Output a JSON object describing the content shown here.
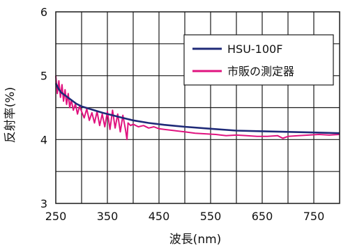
{
  "chart_data": {
    "type": "line",
    "xlabel": "波長(nm)",
    "ylabel": "反射率(%)",
    "xlim": [
      250,
      800
    ],
    "ylim": [
      3,
      6
    ],
    "x_ticks": [
      250,
      350,
      450,
      550,
      650,
      750
    ],
    "x_tick_labels": [
      "250",
      "350",
      "450",
      "550",
      "650",
      "750"
    ],
    "y_ticks": [
      3,
      4,
      5,
      6
    ],
    "y_tick_labels": [
      "3",
      "4",
      "5",
      "6"
    ],
    "grid": true,
    "legend_position": "top-right",
    "series": [
      {
        "name": "HSU-100F",
        "color": "#1f2a78",
        "x": [
          250,
          255,
          260,
          270,
          280,
          290,
          300,
          320,
          340,
          360,
          380,
          400,
          430,
          460,
          500,
          550,
          600,
          650,
          700,
          750,
          800
        ],
        "y": [
          4.88,
          4.8,
          4.74,
          4.68,
          4.62,
          4.56,
          4.52,
          4.47,
          4.42,
          4.38,
          4.34,
          4.3,
          4.26,
          4.23,
          4.2,
          4.17,
          4.14,
          4.13,
          4.12,
          4.11,
          4.1
        ]
      },
      {
        "name": "市販の測定器",
        "color": "#e0137f",
        "x": [
          250,
          253,
          256,
          259,
          262,
          265,
          268,
          271,
          274,
          277,
          280,
          284,
          288,
          292,
          296,
          300,
          305,
          310,
          315,
          320,
          325,
          330,
          335,
          340,
          345,
          350,
          355,
          360,
          365,
          370,
          375,
          380,
          385,
          388,
          390,
          395,
          400,
          410,
          420,
          430,
          440,
          450,
          460,
          480,
          500,
          520,
          540,
          560,
          580,
          600,
          620,
          640,
          660,
          680,
          690,
          700,
          720,
          740,
          760,
          780,
          800
        ],
        "y": [
          5.0,
          4.72,
          4.92,
          4.66,
          4.86,
          4.6,
          4.78,
          4.55,
          4.72,
          4.5,
          4.62,
          4.46,
          4.56,
          4.4,
          4.52,
          4.44,
          4.34,
          4.48,
          4.3,
          4.42,
          4.26,
          4.44,
          4.22,
          4.4,
          4.2,
          4.44,
          4.16,
          4.46,
          4.18,
          4.4,
          4.12,
          4.38,
          4.16,
          4.0,
          4.26,
          4.22,
          4.24,
          4.2,
          4.22,
          4.18,
          4.2,
          4.17,
          4.16,
          4.14,
          4.12,
          4.1,
          4.09,
          4.08,
          4.06,
          4.07,
          4.06,
          4.05,
          4.05,
          4.06,
          4.02,
          4.05,
          4.06,
          4.07,
          4.08,
          4.07,
          4.08
        ]
      }
    ]
  }
}
